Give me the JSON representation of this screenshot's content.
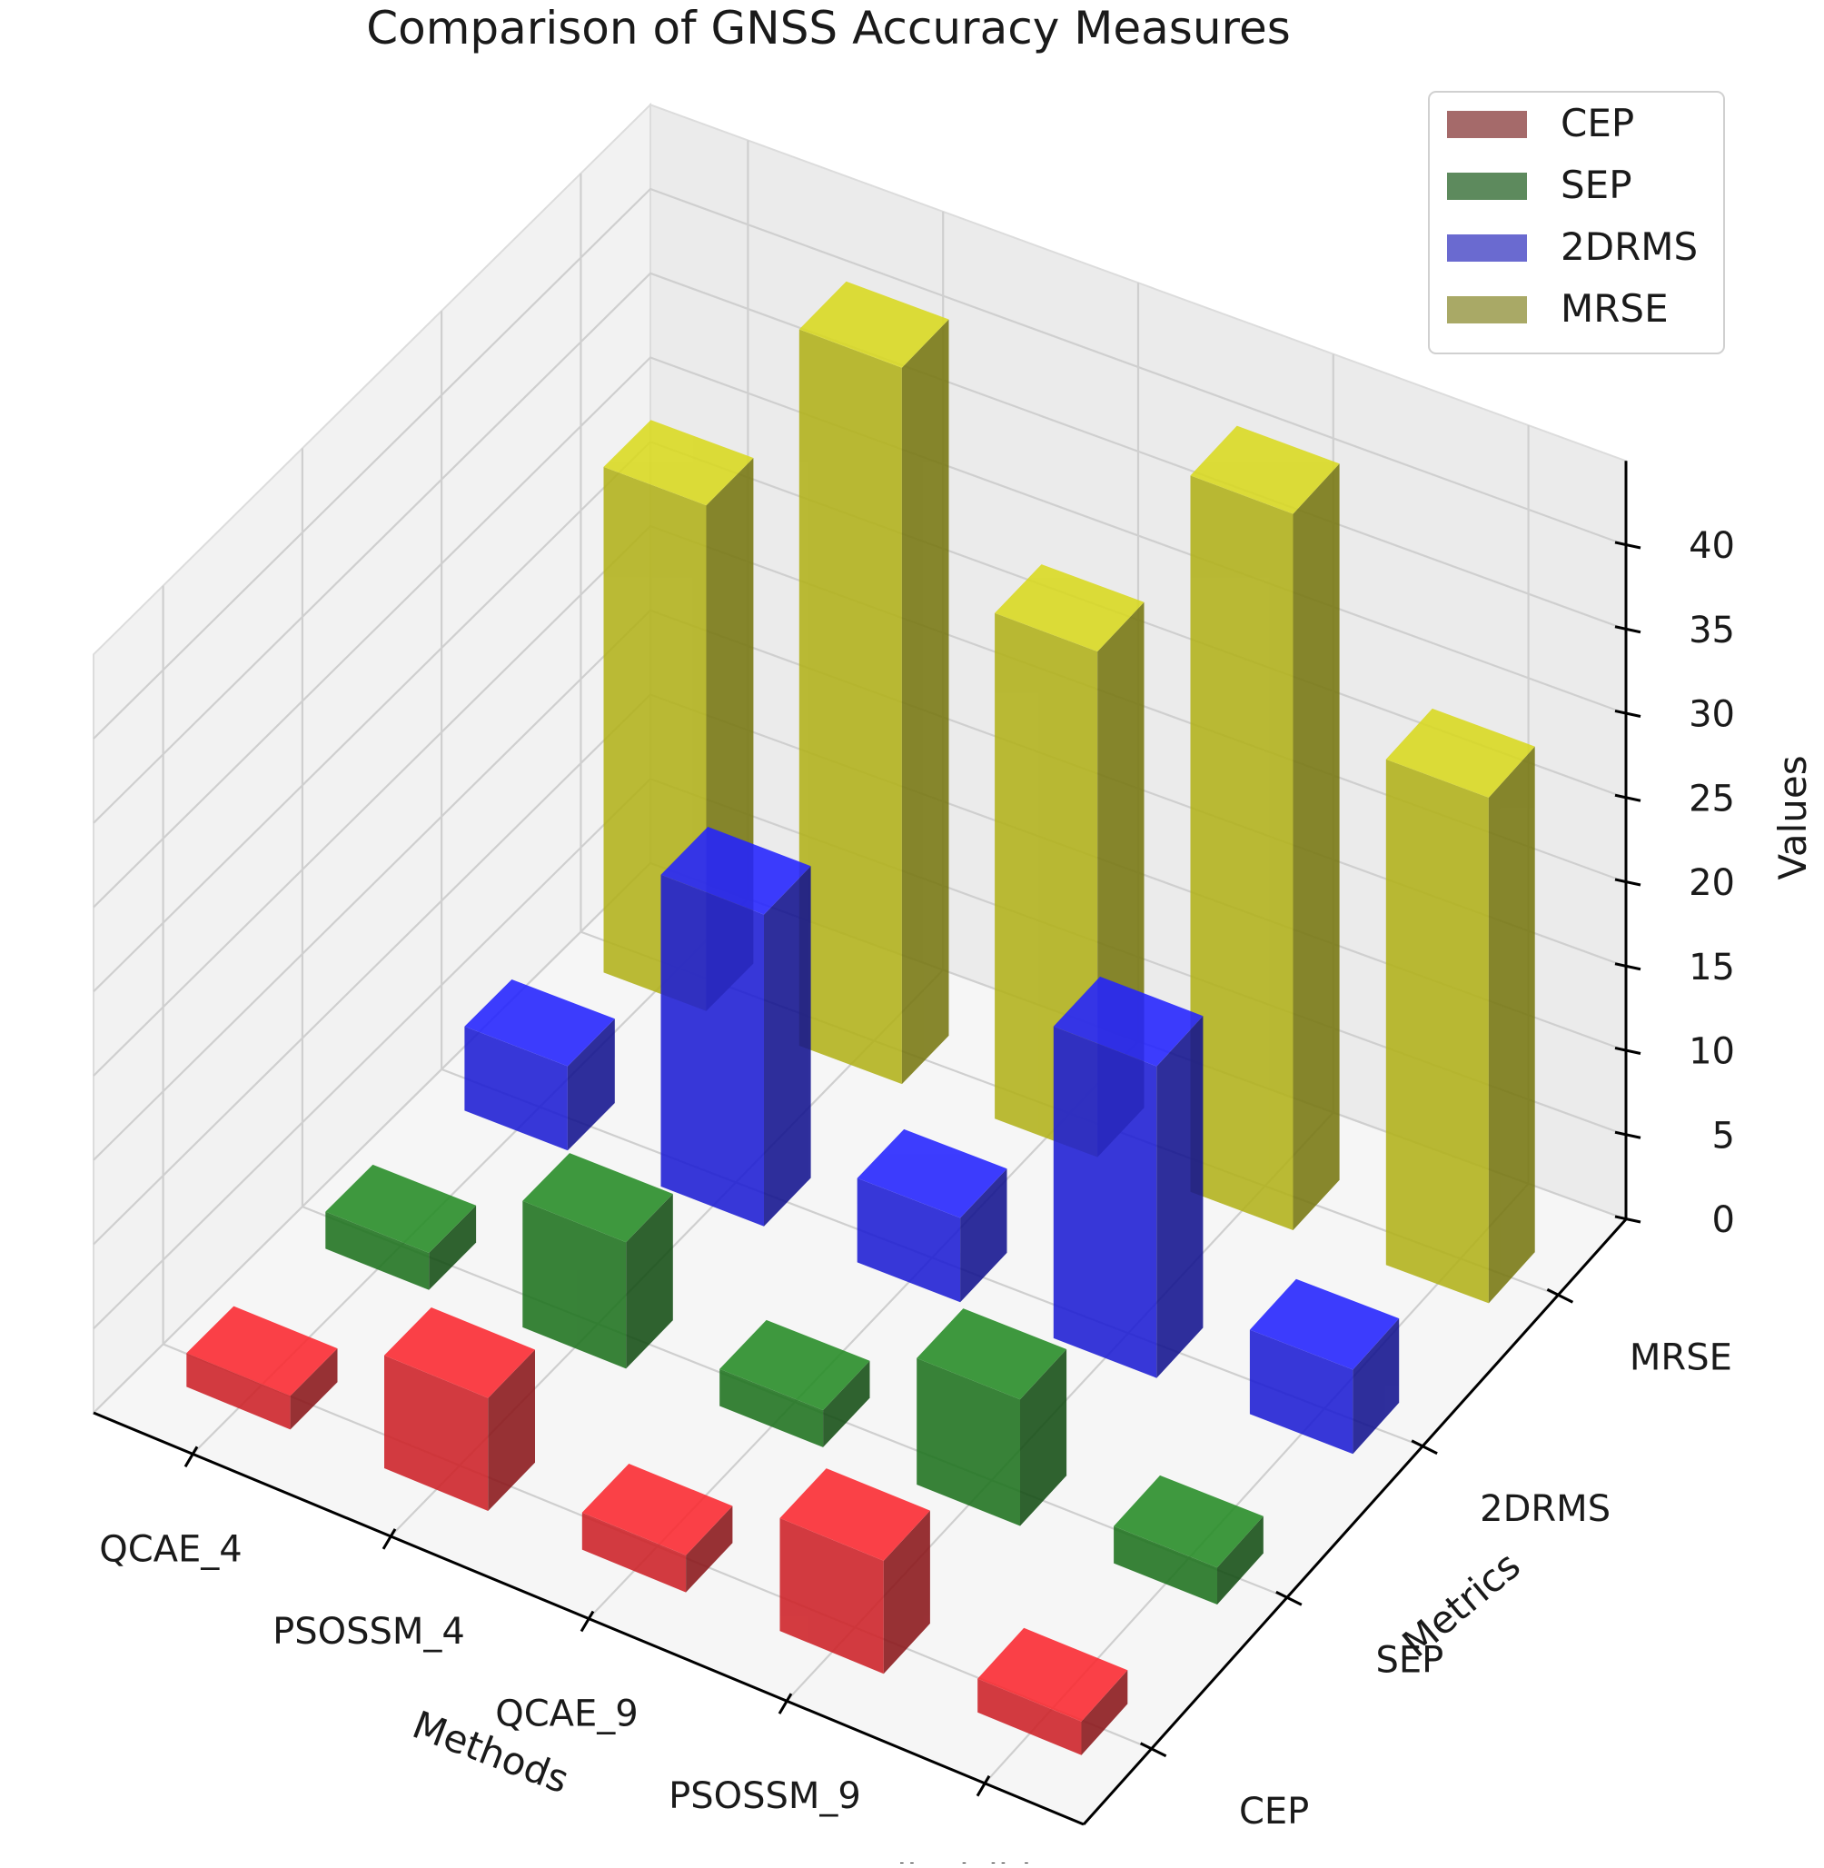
{
  "chart_data": {
    "type": "bar3d",
    "title": "Comparison of GNSS Accuracy Measures",
    "xlabel": "Methods",
    "ylabel": "Metrics",
    "zlabel": "Values",
    "categories": [
      "QCAE_4",
      "PSOSSM_4",
      "QCAE_9",
      "PSOSSM_9",
      "All_Visible"
    ],
    "metrics": [
      "CEP",
      "SEP",
      "2DRMS",
      "MRSE"
    ],
    "zticks": [
      "0",
      "5",
      "10",
      "15",
      "20",
      "25",
      "30",
      "35",
      "40"
    ],
    "zlim": [
      0,
      45
    ],
    "series": [
      {
        "name": "CEP",
        "values": [
          2.0,
          6.7,
          2.2,
          6.7,
          2.0
        ]
      },
      {
        "name": "SEP",
        "values": [
          2.2,
          7.5,
          2.2,
          7.5,
          2.2
        ]
      },
      {
        "name": "2DRMS",
        "values": [
          5.0,
          18.5,
          5.0,
          18.5,
          5.0
        ]
      },
      {
        "name": "MRSE",
        "values": [
          30.0,
          42.5,
          30.0,
          42.5,
          30.0
        ]
      }
    ],
    "colors": {
      "CEP": "#e0242a",
      "SEP": "#217d21",
      "2DRMS": "#1f1fe6",
      "MRSE": "#c2c21c"
    },
    "legend": {
      "position": "top-right",
      "entries": [
        "CEP",
        "SEP",
        "2DRMS",
        "MRSE"
      ],
      "colors": [
        "#a56a6a",
        "#5d8a5d",
        "#6a6ad0",
        "#a9a966"
      ]
    },
    "grid": true
  }
}
